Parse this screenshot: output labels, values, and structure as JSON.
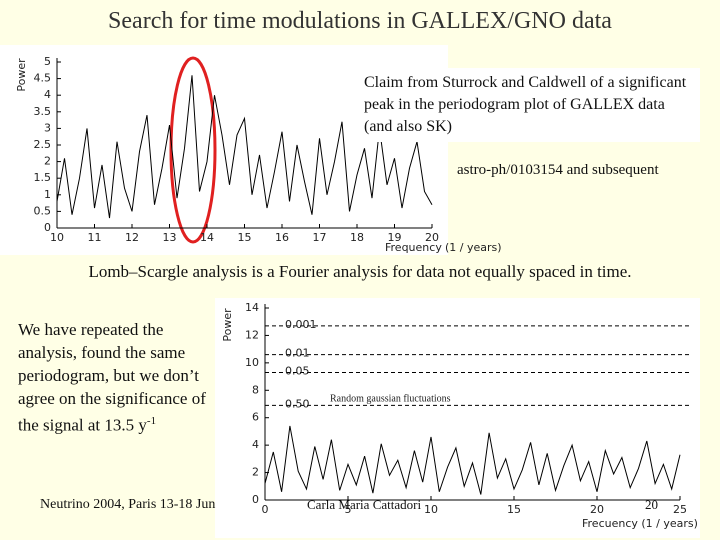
{
  "slide": {
    "title": "Search for time modulations in GALLEX/GNO data",
    "claim": "Claim from Sturrock and Caldwell of a significant  peak in the periodogram plot of GALLEX data (and also SK)",
    "reference": "astro-ph/0103154 and subsequent",
    "method": "Lomb–Scargle analysis is a Fourier analysis for data not equally spaced in time.",
    "body": "We have repeated the analysis, found the same periodogram, but we don’t agree on the significance of the signal at 13.5 y",
    "body_superscript": "-1",
    "footer_left": "Neutrino 2004, Paris 13-18 Jun",
    "footer_author": "Carla Maria Cattadori",
    "footer_page": "20"
  },
  "chart_data": [
    {
      "type": "line",
      "color": "#000000",
      "xlabel": "Frequency",
      "xunit": "(1 / years)",
      "ylabel": "Power",
      "x": [
        10,
        10.2,
        10.4,
        10.6,
        10.8,
        11,
        11.2,
        11.4,
        11.6,
        11.8,
        12,
        12.2,
        12.4,
        12.6,
        12.8,
        13,
        13.2,
        13.4,
        13.6,
        13.8,
        14,
        14.2,
        14.4,
        14.6,
        14.8,
        15,
        15.2,
        15.4,
        15.6,
        15.8,
        16,
        16.2,
        16.4,
        16.6,
        16.8,
        17,
        17.2,
        17.4,
        17.6,
        17.8,
        18,
        18.2,
        18.4,
        18.6,
        18.8,
        19,
        19.2,
        19.4,
        19.6,
        19.8,
        20
      ],
      "values": [
        0.8,
        2.1,
        0.4,
        1.5,
        3.0,
        0.6,
        1.9,
        0.3,
        2.6,
        1.2,
        0.5,
        2.3,
        3.4,
        0.7,
        1.8,
        3.1,
        0.9,
        2.4,
        4.6,
        1.1,
        2.0,
        4.0,
        2.8,
        1.3,
        2.8,
        3.3,
        1.0,
        2.2,
        0.6,
        1.7,
        2.9,
        0.8,
        2.5,
        1.4,
        0.4,
        2.7,
        1.0,
        2.0,
        3.2,
        0.5,
        1.6,
        2.4,
        0.9,
        3.0,
        1.3,
        2.1,
        0.6,
        1.8,
        2.6,
        1.1,
        0.7
      ],
      "xlim": [
        10,
        20
      ],
      "xticks": [
        10,
        11,
        12,
        13,
        14,
        15,
        16,
        17,
        18,
        19,
        20
      ],
      "ylim": [
        0,
        5
      ],
      "yticks": [
        0,
        0.5,
        1,
        1.5,
        2,
        2.5,
        3,
        3.5,
        4,
        4.5,
        5
      ]
    },
    {
      "type": "line",
      "color": "#000000",
      "xlabel": "Frecuency (1 / years)",
      "ylabel": "Power",
      "annotation": "Random gaussian fluctuations",
      "thresholds": [
        {
          "label": "0.001",
          "value": 12.7
        },
        {
          "label": "0.01",
          "value": 10.6
        },
        {
          "label": "0.05",
          "value": 9.3
        },
        {
          "label": "0.50",
          "value": 6.9
        }
      ],
      "x": [
        0,
        0.5,
        1,
        1.5,
        2,
        2.5,
        3,
        3.5,
        4,
        4.5,
        5,
        5.5,
        6,
        6.5,
        7,
        7.5,
        8,
        8.5,
        9,
        9.5,
        10,
        10.5,
        11,
        11.5,
        12,
        12.5,
        13,
        13.5,
        14,
        14.5,
        15,
        15.5,
        16,
        16.5,
        17,
        17.5,
        18,
        18.5,
        19,
        19.5,
        20,
        20.5,
        21,
        21.5,
        22,
        22.5,
        23,
        23.5,
        24,
        24.5,
        25
      ],
      "values": [
        1.2,
        3.5,
        0.6,
        5.4,
        2.1,
        0.8,
        3.9,
        1.5,
        4.4,
        0.7,
        2.6,
        1.1,
        3.2,
        0.5,
        4.1,
        1.8,
        2.9,
        0.9,
        3.6,
        1.3,
        4.6,
        0.6,
        2.4,
        3.8,
        1.0,
        2.7,
        0.4,
        4.9,
        1.6,
        3.0,
        0.8,
        2.2,
        4.2,
        1.1,
        3.4,
        0.7,
        2.5,
        4.0,
        1.4,
        2.8,
        0.6,
        3.6,
        1.9,
        3.1,
        0.9,
        2.3,
        4.3,
        1.2,
        2.6,
        0.8,
        3.3
      ],
      "xlim": [
        0,
        25
      ],
      "xticks": [
        0,
        5,
        10,
        15,
        20,
        25
      ],
      "ylim": [
        0,
        14
      ],
      "yticks": [
        0,
        2,
        4,
        6,
        8,
        10,
        12,
        14
      ]
    }
  ]
}
